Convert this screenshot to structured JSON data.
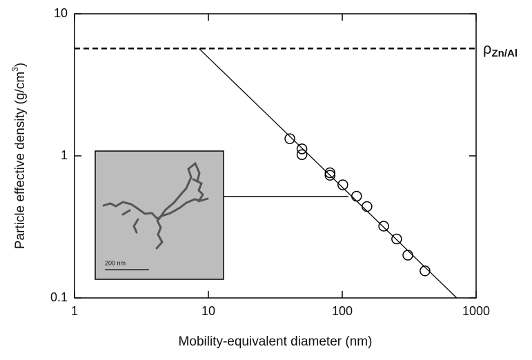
{
  "chart_data": {
    "type": "scatter",
    "xlabel": "Mobility-equivalent diameter (nm)",
    "ylabel": {
      "main": "Particle effective density (g/cm",
      "sup": "3",
      "end": ")"
    },
    "xscale": "log",
    "yscale": "log",
    "xlim": [
      1,
      1000
    ],
    "xticks": [
      1,
      10,
      100,
      1000
    ],
    "ylim": [
      0.1,
      10
    ],
    "yticks": [
      0.1,
      1,
      10
    ],
    "points": {
      "x": [
        40.6,
        50,
        50,
        81,
        81,
        101,
        128,
        153,
        204,
        255,
        309,
        415
      ],
      "y": [
        1.32,
        1.12,
        1.02,
        0.76,
        0.73,
        0.625,
        0.52,
        0.44,
        0.32,
        0.26,
        0.2,
        0.155
      ],
      "color": "#000000"
    },
    "fit_line": {
      "x": [
        8.5,
        717
      ],
      "y": [
        5.7,
        0.1
      ],
      "color": "#000000"
    },
    "reference_line": {
      "y": 5.7,
      "color": "#000000",
      "label": {
        "symbol": "ρ",
        "subscript": "Zn/Al"
      }
    },
    "inset": {
      "scale_bar": "200 nm"
    }
  }
}
